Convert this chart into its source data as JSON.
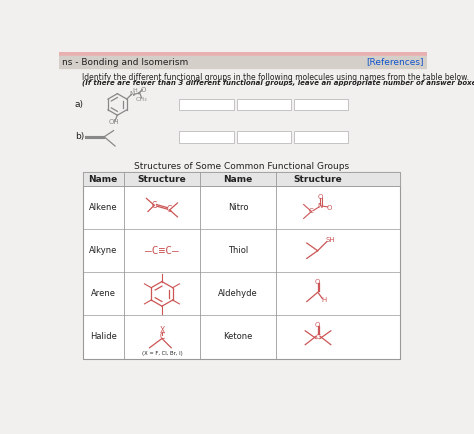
{
  "header_text": "ns - Bonding and Isomerism",
  "references_text": "[References]",
  "header_bg": "#d4cfc9",
  "body_bg": "#f2f0ee",
  "instruction1": "Identify the different functional groups in the following molecules using names from the table below.",
  "instruction2": "(If there are fewer than 3 different functional groups, leave an appropriate number of answer boxes empty.)",
  "label_a": "a)",
  "label_b": "b)",
  "table_title": "Structures of Some Common Functional Groups",
  "table_headers": [
    "Name",
    "Structure",
    "Name",
    "Structure"
  ],
  "row_names_left": [
    "Alkene",
    "Alkyne",
    "Arene",
    "Halide"
  ],
  "row_names_right": [
    "Nitro",
    "Thiol",
    "Aldehyde",
    "Ketone"
  ],
  "box_color": "#ffffff",
  "box_border": "#bbbbbb",
  "table_border": "#999999",
  "struct_color": "#cc5555",
  "text_color": "#222222",
  "halide_note": "(X = F, Cl, Br, I)"
}
